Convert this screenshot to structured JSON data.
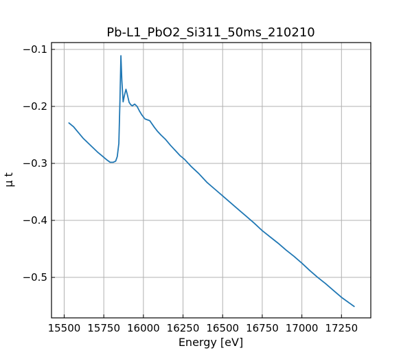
{
  "chart_data": {
    "type": "line",
    "title": "Pb-L1_PbO2_Si311_50ms_210210",
    "xlabel": "Energy [eV]",
    "ylabel": "μ t",
    "xlim": [
      15420,
      17435
    ],
    "ylim": [
      -0.571,
      -0.088
    ],
    "xticks": [
      15500,
      15750,
      16000,
      16250,
      16500,
      16750,
      17000,
      17250
    ],
    "xtick_labels": [
      "15500",
      "15750",
      "16000",
      "16250",
      "16500",
      "16750",
      "17000",
      "17250"
    ],
    "yticks": [
      -0.5,
      -0.4,
      -0.3,
      -0.2,
      -0.1
    ],
    "ytick_labels": [
      "−0.5",
      "−0.4",
      "−0.3",
      "−0.2",
      "−0.1"
    ],
    "grid": true,
    "color": "#1f77b4",
    "series": [
      {
        "x": [
          15530,
          15560,
          15590,
          15620,
          15650,
          15680,
          15710,
          15740,
          15770,
          15790,
          15810,
          15825,
          15835,
          15845,
          15852,
          15858,
          15864,
          15872,
          15880,
          15890,
          15900,
          15910,
          15920,
          15930,
          15945,
          15960,
          15975,
          15990,
          16010,
          16040,
          16070,
          16090,
          16110,
          16140,
          16170,
          16200,
          16230,
          16260,
          16300,
          16350,
          16400,
          16450,
          16500,
          16550,
          16600,
          16650,
          16700,
          16750,
          16800,
          16850,
          16900,
          16950,
          17000,
          17050,
          17100,
          17150,
          17200,
          17250,
          17290,
          17330
        ],
        "y": [
          -0.229,
          -0.236,
          -0.246,
          -0.256,
          -0.264,
          -0.272,
          -0.28,
          -0.287,
          -0.294,
          -0.298,
          -0.298,
          -0.296,
          -0.288,
          -0.265,
          -0.19,
          -0.111,
          -0.155,
          -0.192,
          -0.181,
          -0.17,
          -0.181,
          -0.193,
          -0.197,
          -0.199,
          -0.196,
          -0.2,
          -0.208,
          -0.215,
          -0.222,
          -0.225,
          -0.237,
          -0.244,
          -0.25,
          -0.258,
          -0.268,
          -0.277,
          -0.286,
          -0.293,
          -0.305,
          -0.318,
          -0.333,
          -0.345,
          -0.357,
          -0.369,
          -0.381,
          -0.393,
          -0.405,
          -0.418,
          -0.429,
          -0.44,
          -0.452,
          -0.463,
          -0.475,
          -0.488,
          -0.5,
          -0.511,
          -0.523,
          -0.535,
          -0.543,
          -0.551
        ]
      }
    ]
  }
}
